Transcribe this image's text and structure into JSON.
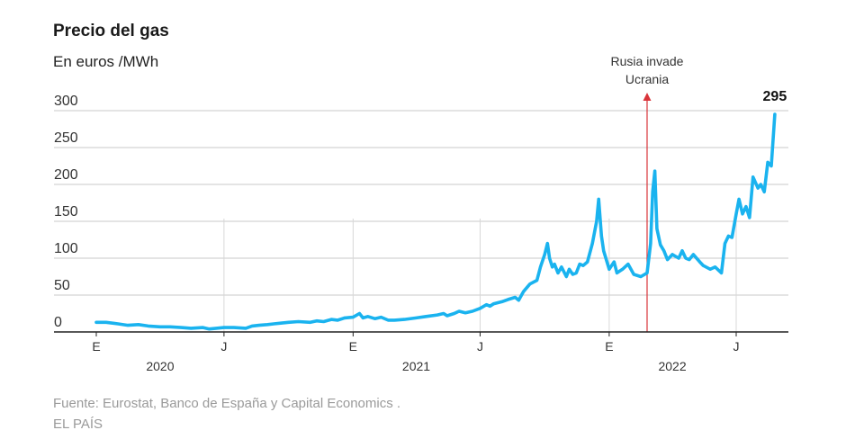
{
  "header": {
    "title": "Precio del gas",
    "subtitle": "En euros /MWh"
  },
  "footer": {
    "source": "Fuente: Eurostat, Banco de España y Capital Economics .",
    "brand": "EL PAÍS"
  },
  "chart_data": {
    "type": "line",
    "title": "Precio del gas",
    "ylabel": "En euros /MWh",
    "ylim": [
      0,
      300
    ],
    "xlim": [
      "2020-01-01",
      "2022-08-31"
    ],
    "yticks": [
      0,
      50,
      100,
      150,
      200,
      250,
      300
    ],
    "grid": "horizontal",
    "xticks": [
      {
        "date": "2020-01-01",
        "label": "E"
      },
      {
        "date": "2020-07-01",
        "label": "J"
      },
      {
        "date": "2021-01-01",
        "label": "E"
      },
      {
        "date": "2021-07-01",
        "label": "J"
      },
      {
        "date": "2022-01-01",
        "label": "E"
      },
      {
        "date": "2022-07-01",
        "label": "J"
      }
    ],
    "year_labels": [
      {
        "date": "2020-04-01",
        "label": "2020"
      },
      {
        "date": "2021-04-01",
        "label": "2021"
      },
      {
        "date": "2022-04-01",
        "label": "2022"
      }
    ],
    "annotation": {
      "date": "2022-02-24",
      "lines": [
        "Rusia invade",
        "Ucrania"
      ],
      "color": "#d9343a"
    },
    "last_label": "295",
    "line_color": "#1ab3ef",
    "series": [
      {
        "points": [
          [
            "2020-01-01",
            13
          ],
          [
            "2020-01-15",
            13
          ],
          [
            "2020-02-01",
            11
          ],
          [
            "2020-02-15",
            9
          ],
          [
            "2020-03-01",
            10
          ],
          [
            "2020-03-15",
            8
          ],
          [
            "2020-04-01",
            7
          ],
          [
            "2020-04-15",
            7
          ],
          [
            "2020-05-01",
            6
          ],
          [
            "2020-05-15",
            5
          ],
          [
            "2020-06-01",
            6
          ],
          [
            "2020-06-10",
            4
          ],
          [
            "2020-06-20",
            5
          ],
          [
            "2020-07-01",
            6
          ],
          [
            "2020-07-15",
            6
          ],
          [
            "2020-08-01",
            5
          ],
          [
            "2020-08-10",
            8
          ],
          [
            "2020-08-20",
            9
          ],
          [
            "2020-09-01",
            10
          ],
          [
            "2020-09-10",
            11
          ],
          [
            "2020-09-20",
            12
          ],
          [
            "2020-10-01",
            13
          ],
          [
            "2020-10-15",
            14
          ],
          [
            "2020-11-01",
            13
          ],
          [
            "2020-11-10",
            15
          ],
          [
            "2020-11-20",
            14
          ],
          [
            "2020-12-01",
            17
          ],
          [
            "2020-12-10",
            16
          ],
          [
            "2020-12-20",
            19
          ],
          [
            "2021-01-01",
            20
          ],
          [
            "2021-01-10",
            25
          ],
          [
            "2021-01-15",
            19
          ],
          [
            "2021-01-22",
            21
          ],
          [
            "2021-02-01",
            18
          ],
          [
            "2021-02-10",
            20
          ],
          [
            "2021-02-20",
            16
          ],
          [
            "2021-03-01",
            16
          ],
          [
            "2021-03-15",
            17
          ],
          [
            "2021-04-01",
            19
          ],
          [
            "2021-04-15",
            21
          ],
          [
            "2021-05-01",
            23
          ],
          [
            "2021-05-10",
            25
          ],
          [
            "2021-05-15",
            22
          ],
          [
            "2021-05-25",
            25
          ],
          [
            "2021-06-01",
            28
          ],
          [
            "2021-06-10",
            26
          ],
          [
            "2021-06-20",
            28
          ],
          [
            "2021-07-01",
            32
          ],
          [
            "2021-07-10",
            37
          ],
          [
            "2021-07-15",
            35
          ],
          [
            "2021-07-20",
            38
          ],
          [
            "2021-08-01",
            41
          ],
          [
            "2021-08-10",
            44
          ],
          [
            "2021-08-20",
            47
          ],
          [
            "2021-08-25",
            43
          ],
          [
            "2021-09-01",
            55
          ],
          [
            "2021-09-10",
            65
          ],
          [
            "2021-09-20",
            70
          ],
          [
            "2021-09-25",
            88
          ],
          [
            "2021-10-01",
            105
          ],
          [
            "2021-10-05",
            120
          ],
          [
            "2021-10-08",
            100
          ],
          [
            "2021-10-12",
            88
          ],
          [
            "2021-10-15",
            92
          ],
          [
            "2021-10-20",
            80
          ],
          [
            "2021-10-25",
            88
          ],
          [
            "2021-11-01",
            75
          ],
          [
            "2021-11-05",
            85
          ],
          [
            "2021-11-10",
            78
          ],
          [
            "2021-11-15",
            80
          ],
          [
            "2021-11-20",
            92
          ],
          [
            "2021-11-25",
            90
          ],
          [
            "2021-12-01",
            95
          ],
          [
            "2021-12-08",
            120
          ],
          [
            "2021-12-14",
            150
          ],
          [
            "2021-12-17",
            180
          ],
          [
            "2021-12-21",
            130
          ],
          [
            "2021-12-24",
            110
          ],
          [
            "2022-01-01",
            85
          ],
          [
            "2022-01-08",
            95
          ],
          [
            "2022-01-12",
            80
          ],
          [
            "2022-01-20",
            85
          ],
          [
            "2022-01-28",
            92
          ],
          [
            "2022-02-05",
            78
          ],
          [
            "2022-02-15",
            75
          ],
          [
            "2022-02-24",
            80
          ],
          [
            "2022-03-01",
            120
          ],
          [
            "2022-03-04",
            190
          ],
          [
            "2022-03-07",
            218
          ],
          [
            "2022-03-10",
            140
          ],
          [
            "2022-03-15",
            118
          ],
          [
            "2022-03-20",
            110
          ],
          [
            "2022-03-25",
            98
          ],
          [
            "2022-04-01",
            105
          ],
          [
            "2022-04-10",
            100
          ],
          [
            "2022-04-15",
            110
          ],
          [
            "2022-04-20",
            100
          ],
          [
            "2022-04-25",
            98
          ],
          [
            "2022-05-01",
            105
          ],
          [
            "2022-05-10",
            95
          ],
          [
            "2022-05-15",
            90
          ],
          [
            "2022-05-25",
            85
          ],
          [
            "2022-06-01",
            88
          ],
          [
            "2022-06-10",
            80
          ],
          [
            "2022-06-15",
            120
          ],
          [
            "2022-06-20",
            130
          ],
          [
            "2022-06-25",
            128
          ],
          [
            "2022-07-01",
            160
          ],
          [
            "2022-07-05",
            180
          ],
          [
            "2022-07-10",
            160
          ],
          [
            "2022-07-15",
            170
          ],
          [
            "2022-07-20",
            155
          ],
          [
            "2022-07-25",
            210
          ],
          [
            "2022-08-01",
            195
          ],
          [
            "2022-08-05",
            200
          ],
          [
            "2022-08-10",
            190
          ],
          [
            "2022-08-15",
            230
          ],
          [
            "2022-08-20",
            225
          ],
          [
            "2022-08-25",
            295
          ]
        ]
      }
    ]
  }
}
